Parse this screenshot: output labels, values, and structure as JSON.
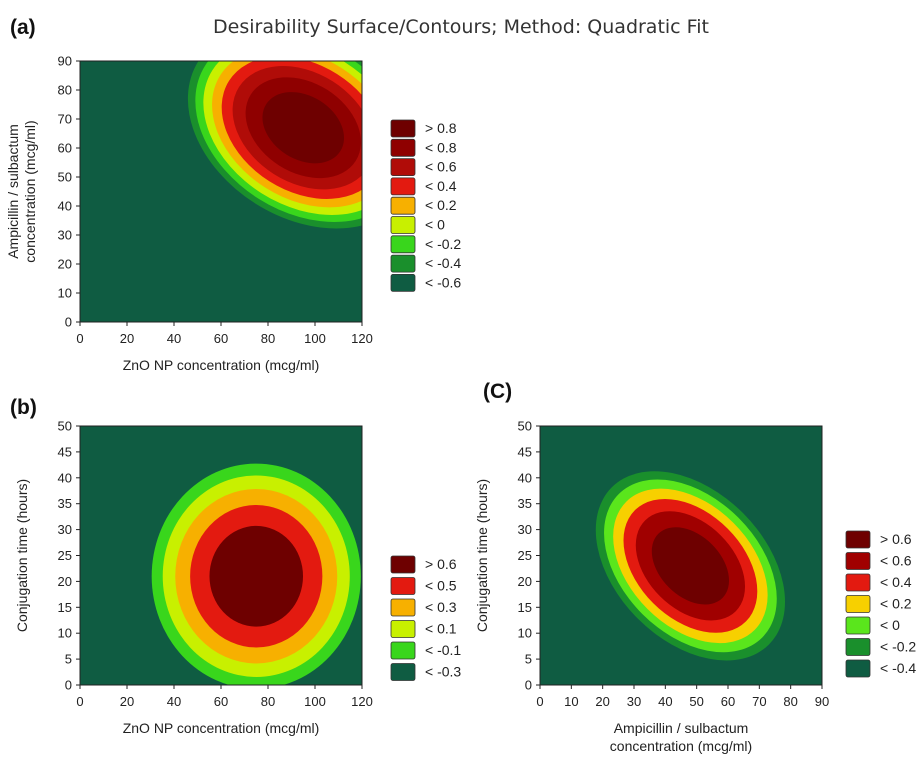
{
  "figure": {
    "title": "Desirability Surface/Contours; Method: Quadratic Fit"
  },
  "palette": {
    "dark_red": "#6e0000",
    "deep_red": "#8f0000",
    "red_mid": "#b00c08",
    "red": "#e31a10",
    "orange": "#f7b000",
    "yellow_green": "#c8f000",
    "green": "#39d61c",
    "dark_green": "#1a8f2c",
    "teal": "#0f5c42"
  },
  "chart_data": [
    {
      "panel": "(a)",
      "type": "heatmap",
      "subtype": "filled-contour",
      "xlabel": "ZnO NP concentration (mcg/ml)",
      "ylabel_lines": [
        "Ampicillin / sulbactum",
        "concentration (mcg/ml)"
      ],
      "xlim": [
        0,
        120
      ],
      "ylim": [
        0,
        90
      ],
      "xticks": [
        0,
        20,
        40,
        60,
        80,
        100,
        120
      ],
      "yticks": [
        0,
        10,
        20,
        30,
        40,
        50,
        60,
        70,
        80,
        90
      ],
      "peak": [
        95,
        67
      ],
      "grid": false,
      "legend_position": "right",
      "legend": [
        {
          "label": "> 0.8",
          "color": "#6e0000"
        },
        {
          "label": "< 0.8",
          "color": "#8f0000"
        },
        {
          "label": "< 0.6",
          "color": "#b00c08"
        },
        {
          "label": "< 0.4",
          "color": "#e31a10"
        },
        {
          "label": "< 0.2",
          "color": "#f7b000"
        },
        {
          "label": "< 0",
          "color": "#c8f000"
        },
        {
          "label": "< -0.2",
          "color": "#39d61c"
        },
        {
          "label": "< -0.4",
          "color": "#1a8f2c"
        },
        {
          "label": "< -0.6",
          "color": "#0f5c42"
        }
      ]
    },
    {
      "panel": "(b)",
      "type": "heatmap",
      "subtype": "filled-contour",
      "xlabel": "ZnO NP concentration (mcg/ml)",
      "ylabel_lines": [
        "Conjugation time (hours)"
      ],
      "xlim": [
        0,
        120
      ],
      "ylim": [
        0,
        50
      ],
      "xticks": [
        0,
        20,
        40,
        60,
        80,
        100,
        120
      ],
      "yticks": [
        0,
        5,
        10,
        15,
        20,
        25,
        30,
        35,
        40,
        45,
        50
      ],
      "peak": [
        75,
        21
      ],
      "grid": false,
      "legend_position": "right",
      "legend": [
        {
          "label": "> 0.6",
          "color": "#6e0000"
        },
        {
          "label": "< 0.5",
          "color": "#e31a10"
        },
        {
          "label": "< 0.3",
          "color": "#f7b000"
        },
        {
          "label": "< 0.1",
          "color": "#c8f000"
        },
        {
          "label": "< -0.1",
          "color": "#39d61c"
        },
        {
          "label": "< -0.3",
          "color": "#0f5c42"
        }
      ]
    },
    {
      "panel": "(C)",
      "type": "heatmap",
      "subtype": "filled-contour",
      "xlabel_lines": [
        "Ampicillin / sulbactum",
        "concentration (mcg/ml)"
      ],
      "ylabel_lines": [
        "Conjugation time (hours)"
      ],
      "xlim": [
        0,
        90
      ],
      "ylim": [
        0,
        50
      ],
      "xticks": [
        0,
        10,
        20,
        30,
        40,
        50,
        60,
        70,
        80,
        90
      ],
      "yticks": [
        0,
        5,
        10,
        15,
        20,
        25,
        30,
        35,
        40,
        45,
        50
      ],
      "peak": [
        48,
        23
      ],
      "grid": false,
      "legend_position": "right",
      "legend": [
        {
          "label": "> 0.6",
          "color": "#6e0000"
        },
        {
          "label": "< 0.6",
          "color": "#a00000"
        },
        {
          "label": "< 0.4",
          "color": "#e31a10"
        },
        {
          "label": "< 0.2",
          "color": "#f7d000"
        },
        {
          "label": "< 0",
          "color": "#5ae61c"
        },
        {
          "label": "< -0.2",
          "color": "#1a8f2c"
        },
        {
          "label": "< -0.4",
          "color": "#0f5c42"
        }
      ]
    }
  ]
}
